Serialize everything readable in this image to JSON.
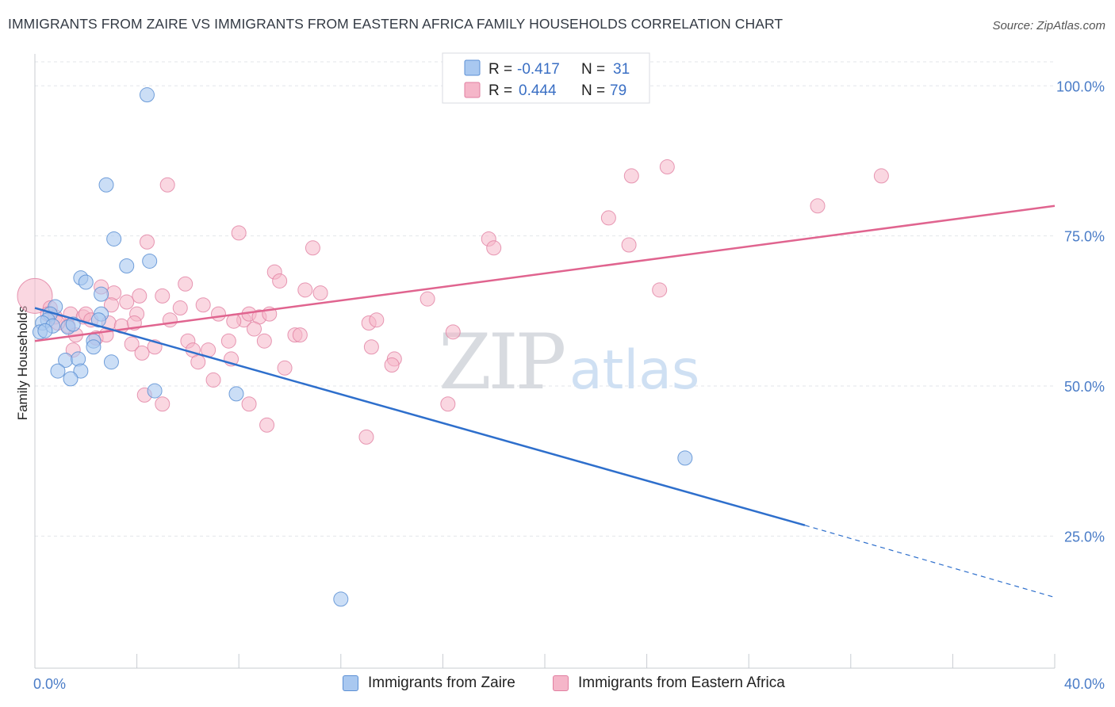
{
  "title": "IMMIGRANTS FROM ZAIRE VS IMMIGRANTS FROM EASTERN AFRICA FAMILY HOUSEHOLDS CORRELATION CHART",
  "source": "Source: ZipAtlas.com",
  "watermark": {
    "zip": "ZIP",
    "atlas": "atlas"
  },
  "colors": {
    "zaire_fill": "#a9c8f0",
    "zaire_stroke": "#5b8fd4",
    "zaire_line": "#2e6fcc",
    "eafrica_fill": "#f5b6c9",
    "eafrica_stroke": "#e17fa1",
    "eafrica_line": "#e0648f",
    "grid": "#e3e6ea",
    "axis_label": "#4a7cc7"
  },
  "legend": {
    "r_label": "R =",
    "n_label": "N =",
    "series": [
      {
        "r": "-0.417",
        "n": "31"
      },
      {
        "r": "0.444",
        "n": "79"
      }
    ]
  },
  "bottom_legend": [
    "Immigrants from Zaire",
    "Immigrants from Eastern Africa"
  ],
  "chart_data": {
    "type": "scatter",
    "title": "IMMIGRANTS FROM ZAIRE VS IMMIGRANTS FROM EASTERN AFRICA FAMILY HOUSEHOLDS CORRELATION CHART",
    "xlabel": "",
    "ylabel": "Family Households",
    "xlim": [
      0,
      40
    ],
    "ylim": [
      3,
      104
    ],
    "x_tick_labels": [
      {
        "value": 0,
        "label": "0.0%"
      },
      {
        "value": 40,
        "label": "40.0%"
      }
    ],
    "x_minor_ticks": [
      0,
      4,
      8,
      12,
      16,
      20,
      24,
      28,
      32,
      36,
      40
    ],
    "y_ticks": [
      {
        "value": 25,
        "label": "25.0%"
      },
      {
        "value": 50,
        "label": "50.0%"
      },
      {
        "value": 75,
        "label": "75.0%"
      },
      {
        "value": 100,
        "label": "100.0%"
      }
    ],
    "series": [
      {
        "name": "Immigrants from Zaire",
        "trend": {
          "x0": 0,
          "y0": 63.0,
          "x1": 30.2,
          "y1": 26.8,
          "dash_x1": 40,
          "dash_y1": 14.8
        },
        "points": [
          [
            4.4,
            98.5
          ],
          [
            2.8,
            83.5
          ],
          [
            3.1,
            74.5
          ],
          [
            3.6,
            70.0
          ],
          [
            4.5,
            70.8
          ],
          [
            2.6,
            65.3
          ],
          [
            1.8,
            68.0
          ],
          [
            2.0,
            67.3
          ],
          [
            0.8,
            63.2
          ],
          [
            2.6,
            62.0
          ],
          [
            0.6,
            62.0
          ],
          [
            0.5,
            61.0
          ],
          [
            0.3,
            60.5
          ],
          [
            0.7,
            60.0
          ],
          [
            1.3,
            59.8
          ],
          [
            1.5,
            60.3
          ],
          [
            2.5,
            61.0
          ],
          [
            0.2,
            59.0
          ],
          [
            0.4,
            59.2
          ],
          [
            2.3,
            57.5
          ],
          [
            2.3,
            56.5
          ],
          [
            1.2,
            54.3
          ],
          [
            1.7,
            54.5
          ],
          [
            3.0,
            54.0
          ],
          [
            0.9,
            52.5
          ],
          [
            1.8,
            52.5
          ],
          [
            1.4,
            51.2
          ],
          [
            4.7,
            49.2
          ],
          [
            7.9,
            48.7
          ],
          [
            25.5,
            38.0
          ],
          [
            12.0,
            14.5
          ]
        ]
      },
      {
        "name": "Immigrants from Eastern Africa",
        "trend": {
          "x0": 0,
          "y0": 57.5,
          "x1": 40,
          "y1": 80.0
        },
        "points": [
          [
            0.0,
            65.0
          ],
          [
            0.6,
            63.0
          ],
          [
            0.5,
            62.0
          ],
          [
            0.8,
            61.5
          ],
          [
            1.3,
            60.0
          ],
          [
            1.4,
            62.0
          ],
          [
            1.9,
            61.5
          ],
          [
            2.0,
            62.0
          ],
          [
            2.2,
            61.0
          ],
          [
            2.4,
            58.0
          ],
          [
            2.6,
            66.5
          ],
          [
            3.1,
            65.5
          ],
          [
            3.0,
            63.5
          ],
          [
            2.9,
            60.5
          ],
          [
            3.4,
            60.0
          ],
          [
            3.6,
            64.0
          ],
          [
            4.0,
            62.0
          ],
          [
            4.1,
            65.0
          ],
          [
            4.4,
            74.0
          ],
          [
            5.2,
            83.5
          ],
          [
            5.0,
            65.0
          ],
          [
            5.3,
            61.0
          ],
          [
            5.7,
            63.0
          ],
          [
            5.9,
            67.0
          ],
          [
            6.0,
            57.5
          ],
          [
            6.2,
            56.0
          ],
          [
            4.7,
            56.5
          ],
          [
            3.8,
            57.0
          ],
          [
            4.2,
            55.5
          ],
          [
            6.4,
            54.0
          ],
          [
            7.2,
            62.0
          ],
          [
            7.6,
            57.5
          ],
          [
            7.7,
            54.5
          ],
          [
            7.0,
            51.0
          ],
          [
            8.2,
            61.0
          ],
          [
            8.4,
            62.0
          ],
          [
            7.8,
            60.8
          ],
          [
            8.8,
            61.5
          ],
          [
            8.0,
            75.5
          ],
          [
            9.4,
            69.0
          ],
          [
            9.0,
            57.5
          ],
          [
            9.6,
            67.5
          ],
          [
            10.2,
            58.5
          ],
          [
            10.4,
            58.5
          ],
          [
            10.6,
            66.0
          ],
          [
            10.9,
            73.0
          ],
          [
            11.2,
            65.5
          ],
          [
            9.8,
            53.0
          ],
          [
            9.1,
            43.5
          ],
          [
            8.4,
            47.0
          ],
          [
            4.3,
            48.5
          ],
          [
            5.0,
            47.0
          ],
          [
            13.1,
            60.5
          ],
          [
            13.4,
            61.0
          ],
          [
            13.2,
            56.5
          ],
          [
            14.1,
            54.5
          ],
          [
            14.0,
            53.5
          ],
          [
            13.0,
            41.5
          ],
          [
            15.4,
            64.5
          ],
          [
            16.2,
            47.0
          ],
          [
            16.4,
            59.0
          ],
          [
            17.8,
            74.5
          ],
          [
            18.0,
            73.0
          ],
          [
            22.5,
            78.0
          ],
          [
            23.3,
            73.5
          ],
          [
            23.4,
            85.0
          ],
          [
            24.8,
            86.5
          ],
          [
            24.5,
            66.0
          ],
          [
            30.7,
            80.0
          ],
          [
            33.2,
            85.0
          ],
          [
            1.5,
            56.0
          ],
          [
            2.8,
            58.5
          ],
          [
            0.9,
            60.5
          ],
          [
            1.6,
            58.5
          ],
          [
            6.8,
            56.0
          ],
          [
            3.9,
            60.5
          ],
          [
            6.6,
            63.5
          ],
          [
            9.2,
            62.0
          ],
          [
            8.6,
            59.5
          ]
        ]
      }
    ]
  }
}
